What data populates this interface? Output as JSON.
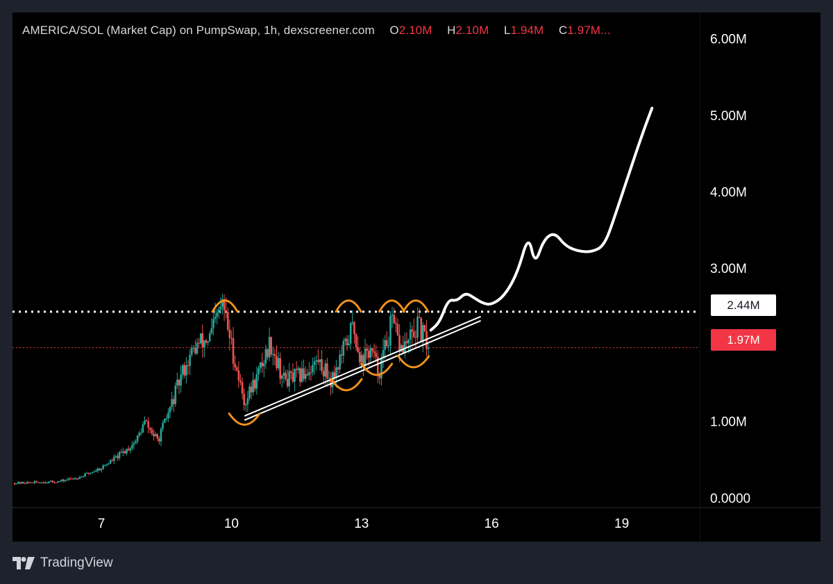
{
  "header": {
    "pair": "AMERICA/SOL (Market Cap) on PumpSwap, 1h, dexscreener.com",
    "ohlc": {
      "o_key": "O",
      "o_val": "2.10M",
      "h_key": "H",
      "h_val": "2.10M",
      "l_key": "L",
      "l_val": "1.94M",
      "c_key": "C",
      "c_val": "1.97M..."
    }
  },
  "colors": {
    "up": "#26a69a",
    "down": "#ef5350",
    "annotation": "#f0911b",
    "projection": "#ffffff",
    "price_line": "#f23645",
    "resistance_line": "#ffffff",
    "background": "#000000",
    "frame": "#1e222d"
  },
  "labels": {
    "current_price": "1.97M",
    "resistance": "2.44M"
  },
  "footer": {
    "brand": "TradingView",
    "logo_icon": "tradingview-logo-icon"
  },
  "chart_data": {
    "type": "candlestick",
    "title": "AMERICA/SOL (Market Cap) on PumpSwap, 1h, dexscreener.com",
    "interval": "1h",
    "y_ticks": [
      {
        "value": 0,
        "label": "0.0000"
      },
      {
        "value": 1000000,
        "label": "1.00M"
      },
      {
        "value": 3000000,
        "label": "3.00M"
      },
      {
        "value": 4000000,
        "label": "4.00M"
      },
      {
        "value": 5000000,
        "label": "5.00M"
      },
      {
        "value": 6000000,
        "label": "6.00M"
      }
    ],
    "x_ticks": [
      {
        "value": 7,
        "label": "7"
      },
      {
        "value": 10,
        "label": "10"
      },
      {
        "value": 13,
        "label": "13"
      },
      {
        "value": 16,
        "label": "16"
      },
      {
        "value": 19,
        "label": "19"
      }
    ],
    "ylim": [
      -120000,
      6350000
    ],
    "xlim": [
      4.95,
      20.8
    ],
    "grid": false,
    "last_close": 1970000,
    "ohlc_last": {
      "open": 2100000,
      "high": 2100000,
      "low": 1940000,
      "close": 1970000
    },
    "horizontal_levels": [
      {
        "value": 2440000,
        "style": "dotted",
        "color": "#ffffff"
      },
      {
        "value": 1970000,
        "style": "dotted",
        "color": "#f23645"
      }
    ],
    "price_keypoints": [
      [
        5.0,
        200000
      ],
      [
        6.0,
        220000
      ],
      [
        6.5,
        280000
      ],
      [
        7.0,
        400000
      ],
      [
        7.5,
        600000
      ],
      [
        7.8,
        750000
      ],
      [
        8.0,
        1000000
      ],
      [
        8.3,
        750000
      ],
      [
        8.6,
        1200000
      ],
      [
        8.9,
        1700000
      ],
      [
        9.2,
        2000000
      ],
      [
        9.5,
        2100000
      ],
      [
        9.8,
        2550000
      ],
      [
        10.0,
        2000000
      ],
      [
        10.3,
        1250000
      ],
      [
        10.6,
        1600000
      ],
      [
        10.9,
        2050000
      ],
      [
        11.2,
        1550000
      ],
      [
        11.6,
        1600000
      ],
      [
        12.0,
        1800000
      ],
      [
        12.3,
        1550000
      ],
      [
        12.6,
        1950000
      ],
      [
        12.8,
        2250000
      ],
      [
        13.0,
        1800000
      ],
      [
        13.2,
        1950000
      ],
      [
        13.4,
        1650000
      ],
      [
        13.7,
        2300000
      ],
      [
        13.9,
        1950000
      ],
      [
        14.1,
        2050000
      ],
      [
        14.3,
        2250000
      ],
      [
        14.55,
        1970000
      ]
    ],
    "annotations": {
      "trendline": {
        "type": "rising_support",
        "from": [
          10.3,
          1050000
        ],
        "to": [
          15.75,
          2350000
        ]
      },
      "projection_path": [
        [
          14.6,
          2200000
        ],
        [
          14.8,
          2300000
        ],
        [
          15.0,
          2600000
        ],
        [
          15.2,
          2580000
        ],
        [
          15.4,
          2690000
        ],
        [
          15.6,
          2620000
        ],
        [
          15.8,
          2550000
        ],
        [
          16.0,
          2530000
        ],
        [
          16.3,
          2650000
        ],
        [
          16.6,
          2950000
        ],
        [
          16.85,
          3450000
        ],
        [
          17.0,
          3050000
        ],
        [
          17.2,
          3380000
        ],
        [
          17.45,
          3480000
        ],
        [
          17.7,
          3300000
        ],
        [
          18.0,
          3230000
        ],
        [
          18.3,
          3220000
        ],
        [
          18.6,
          3300000
        ],
        [
          18.85,
          3700000
        ],
        [
          19.2,
          4300000
        ],
        [
          19.5,
          4800000
        ],
        [
          19.7,
          5100000
        ]
      ],
      "highlighted_peaks": [
        [
          9.85,
          2550000
        ],
        [
          12.7,
          2550000
        ],
        [
          13.7,
          2550000
        ],
        [
          14.25,
          2550000
        ]
      ],
      "highlighted_troughs": [
        [
          10.3,
          1000000
        ],
        [
          12.65,
          1450000
        ],
        [
          13.35,
          1650000
        ],
        [
          14.2,
          1750000
        ]
      ]
    }
  }
}
